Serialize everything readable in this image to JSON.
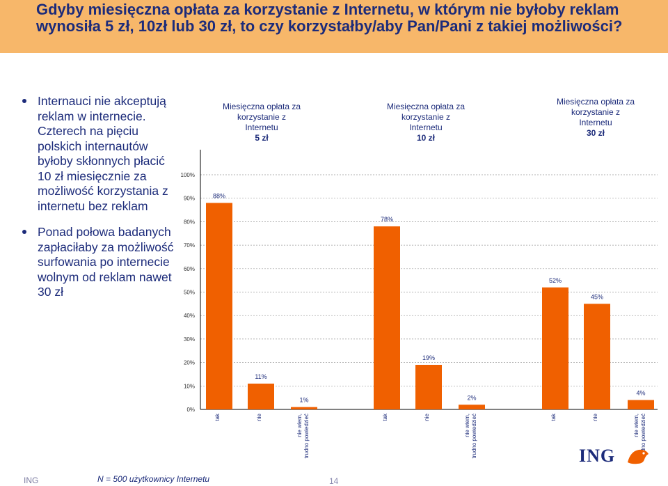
{
  "header": {
    "title": "Gdyby miesięczna opłata za korzystanie z Internetu, w którym nie byłoby reklam wynosiła 5 zł, 10zł lub 30 zł, to czy korzystałby/aby Pan/Pani z takiej możliwości?"
  },
  "bullets": [
    "Internauci nie akceptują reklam w internecie. Czterech na pięciu polskich internautów byłoby skłonnych płacić 10 zł miesięcznie za możliwość korzystania z internetu bez reklam",
    "Ponad połowa badanych zapłaciłaby za możliwość surfowania po internecie wolnym od reklam nawet 30 zł"
  ],
  "footer": {
    "brand": "ING",
    "note": "N = 500 użytkownicy Internetu",
    "page": "14"
  },
  "logo": {
    "text": "ING",
    "icon": "lion-icon"
  },
  "colors": {
    "bar": "#f06000",
    "header_bg": "#f7b76a",
    "title": "#1c2b7a",
    "grid": "#999999"
  },
  "chart_data": {
    "type": "bar",
    "ylim": [
      0,
      100
    ],
    "yticks": [
      "0%",
      "10%",
      "20%",
      "30%",
      "40%",
      "50%",
      "60%",
      "70%",
      "80%",
      "90%",
      "100%"
    ],
    "grid": true,
    "groups": [
      {
        "label": [
          "Miesięczna opłata za",
          "korzystanie z",
          "Internetu",
          "5 zł"
        ],
        "categories": [
          "tak",
          "nie",
          "nie wiem, trudno powiedzieć"
        ],
        "values": [
          88,
          11,
          1
        ],
        "value_labels": [
          "88%",
          "11%",
          "1%"
        ]
      },
      {
        "label": [
          "Miesięczna opłata za",
          "korzystanie z",
          "Internetu",
          "10 zł"
        ],
        "categories": [
          "tak",
          "nie",
          "nie wiem, trudno powiedzieć"
        ],
        "values": [
          78,
          19,
          2
        ],
        "value_labels": [
          "78%",
          "19%",
          "2%"
        ]
      },
      {
        "label": [
          "Miesięczna opłata za",
          "korzystanie z",
          "Internetu",
          "30 zł"
        ],
        "categories": [
          "tak",
          "nie",
          "nie wiem, trudno powiedzieć"
        ],
        "values": [
          52,
          45,
          4
        ],
        "value_labels": [
          "52%",
          "45%",
          "4%"
        ]
      }
    ]
  }
}
